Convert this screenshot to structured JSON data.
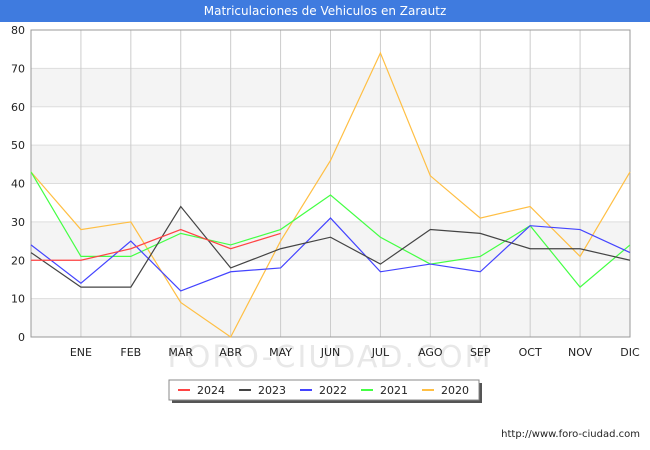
{
  "chart_data": {
    "type": "line",
    "title": "Matriculaciones de Vehiculos en Zarautz",
    "categories": [
      "",
      "ENE",
      "FEB",
      "MAR",
      "ABR",
      "MAY",
      "JUN",
      "JUL",
      "AGO",
      "SEP",
      "OCT",
      "NOV",
      "DIC"
    ],
    "ylim": [
      0,
      80
    ],
    "yticks": [
      0,
      10,
      20,
      30,
      40,
      50,
      60,
      70,
      80
    ],
    "grid": true,
    "legend_position": "bottom",
    "series": [
      {
        "name": "2024",
        "color": "#ff4444",
        "values": [
          20,
          20,
          23,
          28,
          23,
          27,
          null,
          null,
          null,
          null,
          null,
          null,
          null
        ]
      },
      {
        "name": "2023",
        "color": "#444444",
        "values": [
          22,
          13,
          13,
          34,
          18,
          23,
          26,
          19,
          28,
          27,
          23,
          23,
          20
        ]
      },
      {
        "name": "2022",
        "color": "#4444ff",
        "values": [
          24,
          14,
          25,
          12,
          17,
          18,
          31,
          17,
          19,
          17,
          29,
          28,
          22
        ]
      },
      {
        "name": "2021",
        "color": "#44ff44",
        "values": [
          43,
          21,
          21,
          27,
          24,
          28,
          37,
          26,
          19,
          21,
          29,
          13,
          24
        ]
      },
      {
        "name": "2020",
        "color": "#ffbf44",
        "values": [
          43,
          28,
          30,
          9,
          0,
          25,
          46,
          74,
          42,
          31,
          34,
          21,
          43
        ]
      }
    ]
  },
  "watermark": "FORO-CIUDAD.COM",
  "source": "http://www.foro-ciudad.com"
}
